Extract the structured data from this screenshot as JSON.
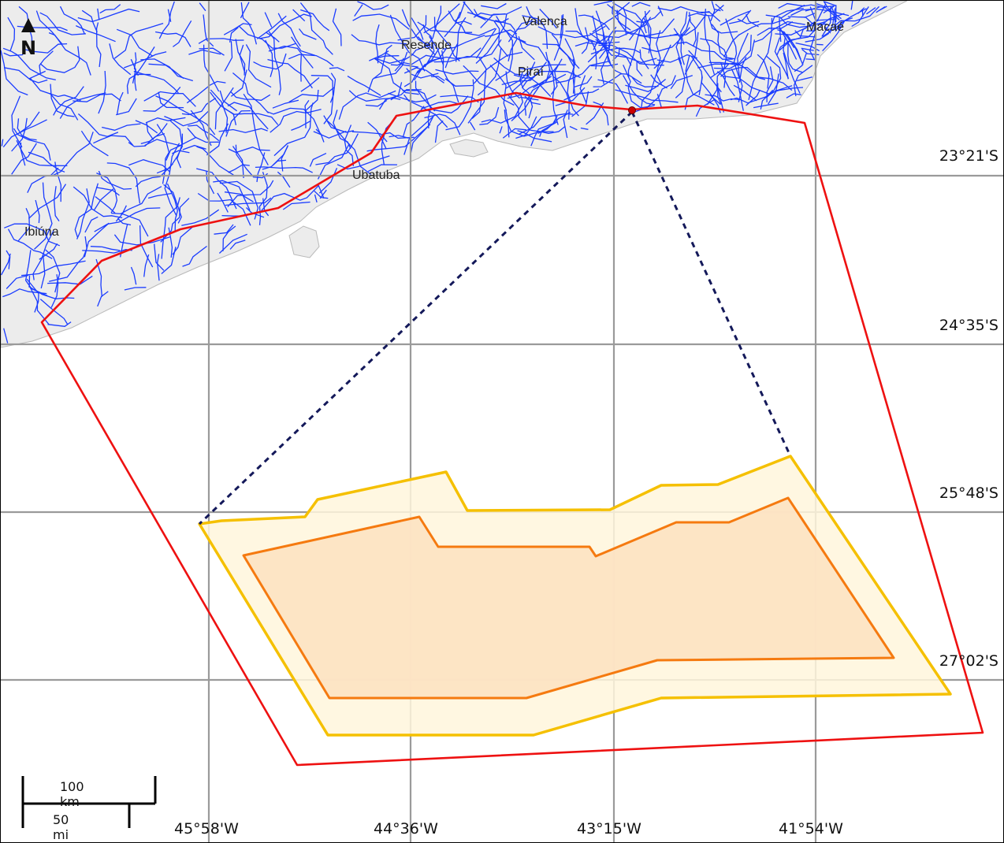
{
  "map": {
    "grid_lat_labels": [
      "23°21'S",
      "24°35'S",
      "25°48'S",
      "27°02'S"
    ],
    "grid_lon_labels": [
      "45°58'W",
      "44°36'W",
      "43°15'W",
      "41°54'W"
    ],
    "cities": [
      "Valença",
      "Resende",
      "Piraí",
      "Macaé",
      "Ubatuba",
      "Ibiúna"
    ],
    "scale": {
      "km_label": "100 km",
      "mi_label": "50 mi"
    },
    "north_label": "N",
    "colors": {
      "rivers": "#1a3cff",
      "land": "#ececec",
      "boundary": "#ee1111",
      "outer_area_stroke": "#f5c000",
      "outer_area_fill": "#fff6dc",
      "inner_area_stroke": "#f57a10",
      "inner_area_fill": "#fde2c2",
      "connector": "#14195a",
      "grid": "#9a9a9a"
    }
  }
}
